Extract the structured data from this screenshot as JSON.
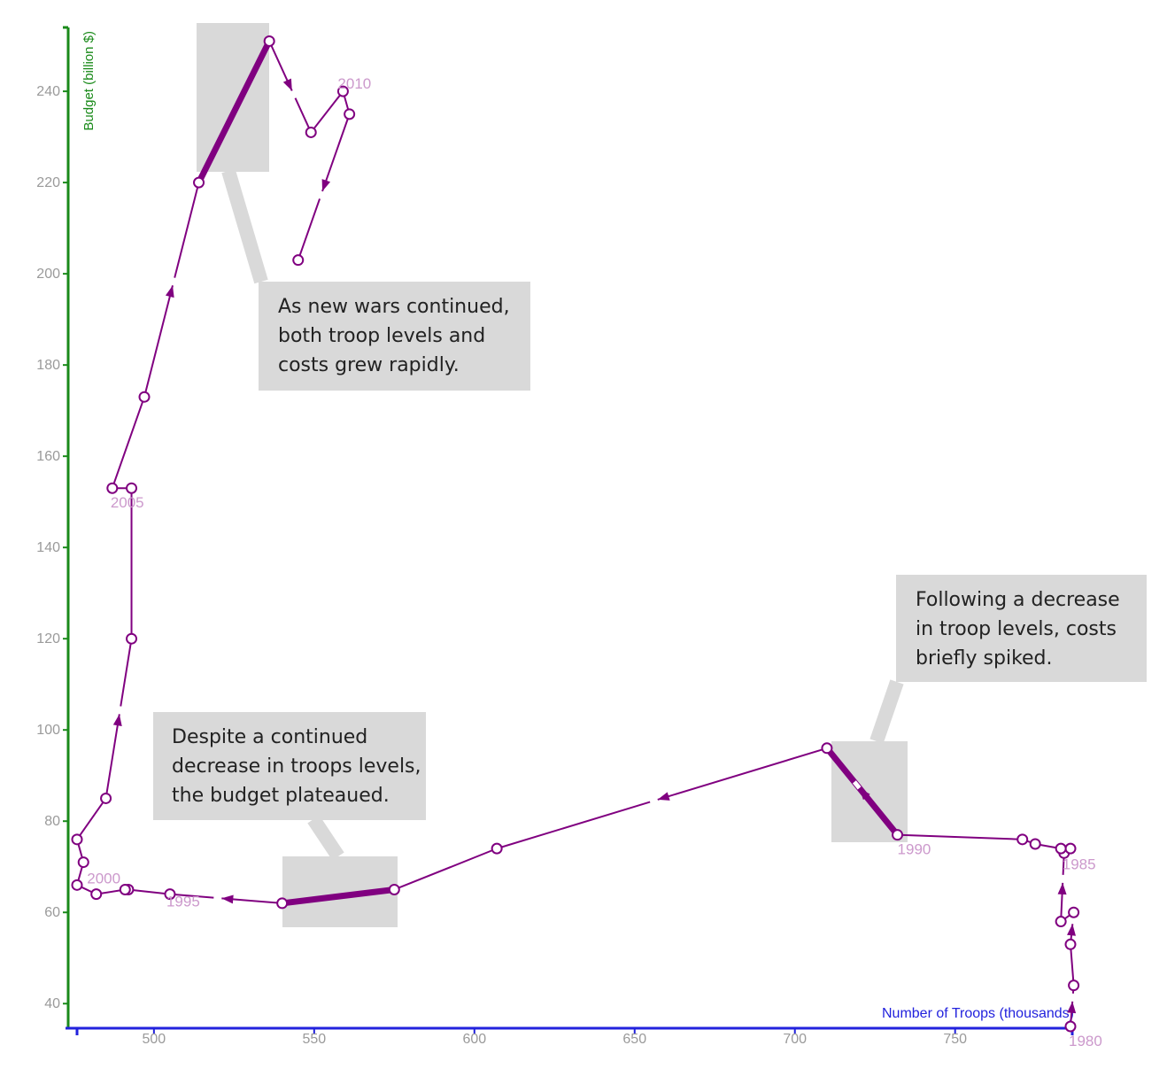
{
  "chart_data": {
    "type": "line",
    "title": "",
    "xlabel": "Number of Troops (thousands)",
    "ylabel": "Budget (billion $)",
    "xlim": [
      476,
      786
    ],
    "ylim": [
      35,
      254
    ],
    "x_ticks": [
      500,
      550,
      600,
      650,
      700,
      750
    ],
    "y_ticks": [
      40,
      60,
      80,
      100,
      120,
      140,
      160,
      180,
      200,
      220,
      240
    ],
    "series": [
      {
        "name": "",
        "color": "#800080",
        "points": [
          {
            "year": 1980,
            "x": 786,
            "y": 35
          },
          {
            "year": 1981,
            "x": 787,
            "y": 44
          },
          {
            "year": 1982,
            "x": 786,
            "y": 53
          },
          {
            "year": 1983,
            "x": 787,
            "y": 60
          },
          {
            "year": 1984,
            "x": 783,
            "y": 58
          },
          {
            "year": 1985,
            "x": 784,
            "y": 73
          },
          {
            "year": 1986,
            "x": 786,
            "y": 74
          },
          {
            "year": 1987,
            "x": 783,
            "y": 74
          },
          {
            "year": 1988,
            "x": 775,
            "y": 75
          },
          {
            "year": 1989,
            "x": 771,
            "y": 76
          },
          {
            "year": 1990,
            "x": 732,
            "y": 77
          },
          {
            "year": 1991,
            "x": 710,
            "y": 96
          },
          {
            "year": 1992,
            "x": 607,
            "y": 74
          },
          {
            "year": 1993,
            "x": 575,
            "y": 65
          },
          {
            "year": 1994,
            "x": 540,
            "y": 62
          },
          {
            "year": 1995,
            "x": 505,
            "y": 64
          },
          {
            "year": 1996,
            "x": 492,
            "y": 65
          },
          {
            "year": 1997,
            "x": 491,
            "y": 65
          },
          {
            "year": 1998,
            "x": 482,
            "y": 64
          },
          {
            "year": 1999,
            "x": 476,
            "y": 66
          },
          {
            "year": 2000,
            "x": 478,
            "y": 71
          },
          {
            "year": 2001,
            "x": 476,
            "y": 76
          },
          {
            "year": 2002,
            "x": 485,
            "y": 85
          },
          {
            "year": 2003,
            "x": 493,
            "y": 120
          },
          {
            "year": 2004,
            "x": 493,
            "y": 153
          },
          {
            "year": 2005,
            "x": 487,
            "y": 153
          },
          {
            "year": 2006,
            "x": 497,
            "y": 173
          },
          {
            "year": 2007,
            "x": 514,
            "y": 220
          },
          {
            "year": 2008,
            "x": 536,
            "y": 251
          },
          {
            "year": 2009,
            "x": 549,
            "y": 231
          },
          {
            "year": 2010,
            "x": 559,
            "y": 240
          },
          {
            "year": 2011,
            "x": 561,
            "y": 235
          },
          {
            "year": 2012,
            "x": 545,
            "y": 203
          }
        ]
      }
    ],
    "year_labels": [
      {
        "year": 1980,
        "text": "1980"
      },
      {
        "year": 1985,
        "text": "1985"
      },
      {
        "year": 1990,
        "text": "1990"
      },
      {
        "year": 1995,
        "text": "1995"
      },
      {
        "year": 2000,
        "text": "2000"
      },
      {
        "year": 2005,
        "text": "2005"
      },
      {
        "year": 2010,
        "text": "2010"
      }
    ],
    "highlighted_segments": [
      {
        "from_year": 2007,
        "to_year": 2008
      },
      {
        "from_year": 1990,
        "to_year": 1991
      },
      {
        "from_year": 1993,
        "to_year": 1994
      }
    ],
    "annotations": [
      {
        "lines": [
          "As new wars continued,",
          "both troop levels and",
          "costs grew rapidly."
        ],
        "segment": [
          2007,
          2008
        ]
      },
      {
        "lines": [
          "Following a decrease",
          "in troop levels, costs",
          "briefly spiked."
        ],
        "segment": [
          1990,
          1991
        ]
      },
      {
        "lines": [
          "Despite a continued",
          "decrease in troops levels,",
          "the budget plateaued."
        ],
        "segment": [
          1993,
          1994
        ]
      }
    ],
    "grid": false,
    "line_color": "#800080",
    "annotation_fill": "#d9d9d9",
    "y_axis_color": "#1a8a1a",
    "x_axis_color": "#2222dd"
  }
}
